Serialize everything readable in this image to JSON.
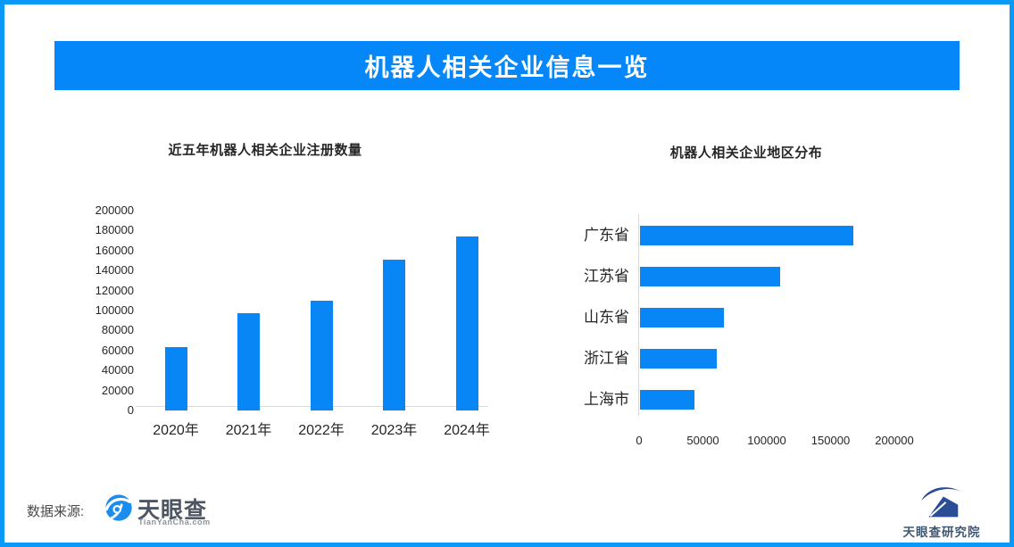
{
  "theme": {
    "accent_blue": "#0587FA",
    "bar_blue": "#0886F5",
    "border_blue": "#0999F8",
    "axis_gray": "#D9D9D9",
    "text_dark": "#262626",
    "footer_text": "#4A4A4A",
    "logo_text": "#4D5662",
    "logo_sub": "#8A939C",
    "institute_blue": "#2B4D96",
    "institute_text": "#3D5875"
  },
  "banner": {
    "title": "机器人相关企业信息一览"
  },
  "chart_data": [
    {
      "type": "bar",
      "orientation": "vertical",
      "title": "近五年机器人相关企业注册数量",
      "categories": [
        "2020年",
        "2021年",
        "2022年",
        "2023年",
        "2024年"
      ],
      "values": [
        63000,
        97000,
        110000,
        151000,
        174000
      ],
      "xlabel": "",
      "ylabel": "",
      "ylim": [
        0,
        200000
      ],
      "ytick_step": 20000,
      "grid": false,
      "legend": "none",
      "bar_color": "#0886F5"
    },
    {
      "type": "bar",
      "orientation": "horizontal",
      "title": "机器人相关企业地区分布",
      "categories": [
        "广东省",
        "江苏省",
        "山东省",
        "浙江省",
        "上海市"
      ],
      "values": [
        167000,
        110000,
        66000,
        60000,
        43000
      ],
      "xlabel": "",
      "ylabel": "",
      "xlim": [
        0,
        200000
      ],
      "xticks": [
        0,
        50000,
        100000,
        150000,
        200000
      ],
      "grid": false,
      "legend": "none",
      "bar_color": "#0886F5"
    }
  ],
  "footer": {
    "source_label": "数据来源:",
    "logo_name": "天眼查",
    "logo_domain": "TianYanCha.com",
    "institute_name": "天眼查研究院",
    "logo_icon": "tianyancha-eye-icon",
    "institute_icon": "tianyancha-institute-icon"
  }
}
